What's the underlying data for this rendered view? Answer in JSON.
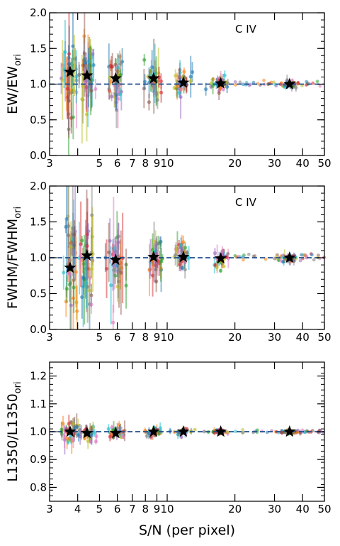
{
  "chart_data": [
    {
      "type": "scatter",
      "annotation": "C IV",
      "ylabel": "EW/EW",
      "ylabel_sub": "ori",
      "xlabel": "",
      "xscale": "log",
      "xlim": [
        3,
        50
      ],
      "ylim": [
        0.0,
        2.0
      ],
      "xticks": [
        3,
        4,
        5,
        6,
        7,
        8,
        9,
        10,
        20,
        30,
        40,
        50
      ],
      "xtick_labels": [
        "3",
        "",
        "5",
        "6",
        "7",
        "8",
        "9",
        "10",
        "20",
        "30",
        "40",
        "50"
      ],
      "yticks": [
        0.0,
        0.5,
        1.0,
        1.5,
        2.0
      ],
      "ytick_labels": [
        "0.0",
        "0.5",
        "1.0",
        "1.5",
        "2.0"
      ],
      "reference_line": 1.0,
      "median_stars": {
        "x": [
          3.7,
          4.4,
          5.9,
          8.7,
          11.8,
          17.3,
          35.0
        ],
        "y": [
          1.17,
          1.12,
          1.08,
          1.08,
          1.02,
          1.01,
          1.0
        ]
      },
      "scatter_spread": [
        0.28,
        0.24,
        0.18,
        0.13,
        0.09,
        0.05,
        0.025
      ]
    },
    {
      "type": "scatter",
      "annotation": "C IV",
      "ylabel": "FWHM/FWHM",
      "ylabel_sub": "ori",
      "xlabel": "",
      "xscale": "log",
      "xlim": [
        3,
        50
      ],
      "ylim": [
        0.0,
        2.0
      ],
      "xticks": [
        3,
        4,
        5,
        6,
        7,
        8,
        9,
        10,
        20,
        30,
        40,
        50
      ],
      "xtick_labels": [
        "3",
        "",
        "5",
        "6",
        "7",
        "8",
        "9",
        "10",
        "20",
        "30",
        "40",
        "50"
      ],
      "yticks": [
        0.0,
        0.5,
        1.0,
        1.5,
        2.0
      ],
      "ytick_labels": [
        "0.0",
        "0.5",
        "1.0",
        "1.5",
        "2.0"
      ],
      "reference_line": 1.0,
      "median_stars": {
        "x": [
          3.7,
          4.4,
          5.9,
          8.7,
          11.8,
          17.3,
          35.0
        ],
        "y": [
          0.86,
          1.03,
          0.97,
          1.01,
          1.01,
          0.99,
          1.0
        ]
      },
      "scatter_spread": [
        0.35,
        0.3,
        0.22,
        0.15,
        0.1,
        0.06,
        0.03
      ]
    },
    {
      "type": "scatter",
      "annotation": "",
      "ylabel": "L1350/L1350",
      "ylabel_sub": "ori",
      "xlabel": "S/N (per pixel)",
      "xscale": "log",
      "xlim": [
        3,
        50
      ],
      "ylim": [
        0.75,
        1.25
      ],
      "xticks": [
        3,
        4,
        5,
        6,
        7,
        8,
        9,
        10,
        20,
        30,
        40,
        50
      ],
      "xtick_labels": [
        "3",
        "4",
        "5",
        "6",
        "7",
        "8",
        "9",
        "10",
        "20",
        "30",
        "40",
        "50"
      ],
      "yticks": [
        0.8,
        0.9,
        1.0,
        1.1,
        1.2
      ],
      "ytick_labels": [
        "0.8",
        "0.9",
        "1.0",
        "1.1",
        "1.2"
      ],
      "reference_line": 1.0,
      "median_stars": {
        "x": [
          3.7,
          4.4,
          5.9,
          8.7,
          11.8,
          17.3,
          35.0
        ],
        "y": [
          1.0,
          0.995,
          0.995,
          1.0,
          1.0,
          1.0,
          1.0
        ]
      },
      "scatter_spread": [
        0.02,
        0.015,
        0.012,
        0.008,
        0.006,
        0.004,
        0.003
      ]
    }
  ],
  "colors": {
    "scatter_palette": [
      "#1f77b4",
      "#ff7f0e",
      "#2ca02c",
      "#d62728",
      "#9467bd",
      "#8c564b",
      "#e377c2",
      "#7f7f7f",
      "#bcbd22",
      "#17becf"
    ],
    "reference_line": "#1f4e8c",
    "stars": "#000000"
  }
}
